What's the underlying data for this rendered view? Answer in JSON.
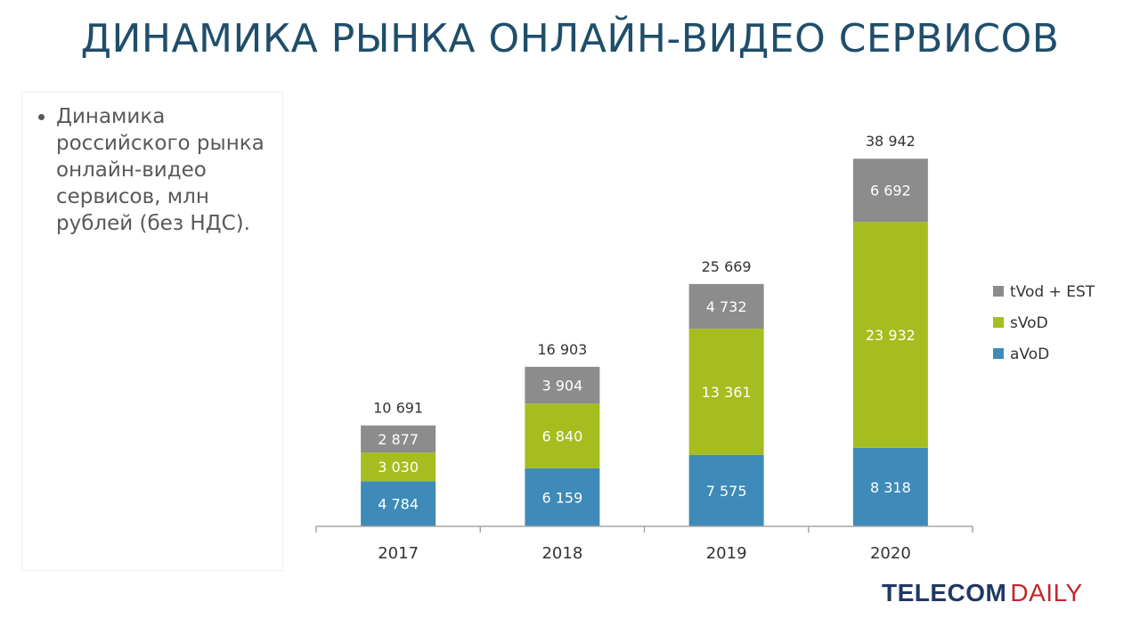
{
  "slide": {
    "title": "ДИНАМИКА РЫНКА ОНЛАЙН-ВИДЕО СЕРВИСОВ",
    "bullet": "Динамика российского рынка онлайн-видео сервисов, млн рублей (без НДС)."
  },
  "brand": {
    "part1": "TELECOM",
    "part2": "DAILY",
    "color1": "#1f3864",
    "color2": "#c0272d"
  },
  "chart_data": {
    "type": "bar",
    "stacked": true,
    "categories": [
      "2017",
      "2018",
      "2019",
      "2020"
    ],
    "series": [
      {
        "name": "aVoD",
        "color": "#3e8ab8",
        "values": [
          4784,
          6159,
          7575,
          8318
        ],
        "labels": [
          "4 784",
          "6 159",
          "7 575",
          "8 318"
        ]
      },
      {
        "name": "sVoD",
        "color": "#a6bd1f",
        "values": [
          3030,
          6840,
          13361,
          23932
        ],
        "labels": [
          "3 030",
          "6 840",
          "13 361",
          "23 932"
        ]
      },
      {
        "name": "tVod + EST",
        "color": "#8c8c8c",
        "values": [
          2877,
          3904,
          4732,
          6692
        ],
        "labels": [
          "2 877",
          "3 904",
          "4 732",
          "6 692"
        ]
      }
    ],
    "totals": [
      10691,
      16903,
      25669,
      38942
    ],
    "total_labels": [
      "10 691",
      "16 903",
      "25 669",
      "38 942"
    ],
    "legend_order": [
      "tVod + EST",
      "sVoD",
      "aVoD"
    ],
    "legend_position": "right",
    "grid": false,
    "title": "",
    "xlabel": "",
    "ylabel": ""
  }
}
